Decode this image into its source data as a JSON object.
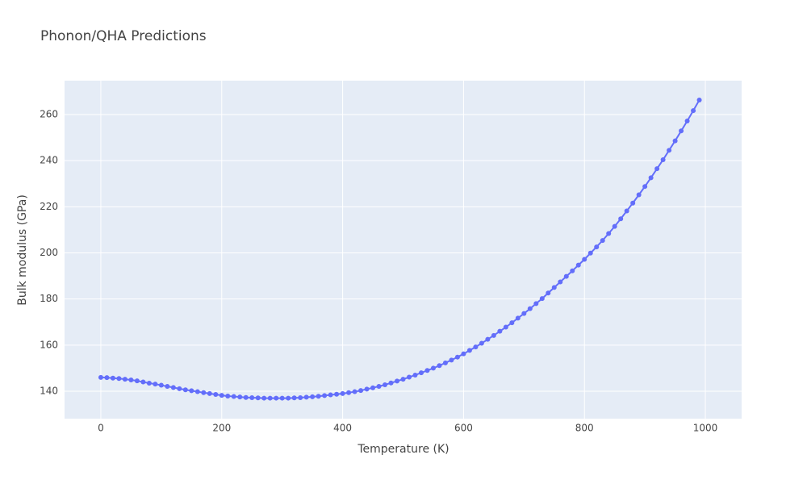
{
  "chart_data": {
    "type": "line",
    "title": "Phonon/QHA Predictions",
    "xlabel": "Temperature (K)",
    "ylabel": "Bulk modulus (GPa)",
    "x": [
      0,
      10,
      20,
      30,
      40,
      50,
      60,
      70,
      80,
      90,
      100,
      110,
      120,
      130,
      140,
      150,
      160,
      170,
      180,
      190,
      200,
      210,
      220,
      230,
      240,
      250,
      260,
      270,
      280,
      290,
      300,
      310,
      320,
      330,
      340,
      350,
      360,
      370,
      380,
      390,
      400,
      410,
      420,
      430,
      440,
      450,
      460,
      470,
      480,
      490,
      500,
      510,
      520,
      530,
      540,
      550,
      560,
      570,
      580,
      590,
      600,
      610,
      620,
      630,
      640,
      650,
      660,
      670,
      680,
      690,
      700,
      710,
      720,
      730,
      740,
      750,
      760,
      770,
      780,
      790,
      800,
      810,
      820,
      830,
      840,
      850,
      860,
      870,
      880,
      890,
      900,
      910,
      920,
      930,
      940,
      950,
      960,
      970,
      980,
      990
    ],
    "series": [
      {
        "name": "Bulk modulus",
        "color": "#636efa",
        "values": [
          146.0,
          145.9,
          145.7,
          145.5,
          145.2,
          144.9,
          144.5,
          144.0,
          143.5,
          143.1,
          142.6,
          142.1,
          141.6,
          141.1,
          140.6,
          140.2,
          139.8,
          139.4,
          139.0,
          138.6,
          138.2,
          137.9,
          137.7,
          137.5,
          137.3,
          137.2,
          137.1,
          137.0,
          137.0,
          137.0,
          137.0,
          137.0,
          137.1,
          137.2,
          137.4,
          137.6,
          137.8,
          138.1,
          138.4,
          138.7,
          139.0,
          139.4,
          139.8,
          140.3,
          140.9,
          141.5,
          142.1,
          142.8,
          143.6,
          144.4,
          145.2,
          146.1,
          147.0,
          148.0,
          149.0,
          150.0,
          151.1,
          152.3,
          153.5,
          154.8,
          156.2,
          157.7,
          159.2,
          160.8,
          162.5,
          164.2,
          166.0,
          167.8,
          169.7,
          171.7,
          173.7,
          175.8,
          178.0,
          180.2,
          182.6,
          185.0,
          187.4,
          189.8,
          192.2,
          194.7,
          197.2,
          199.9,
          202.6,
          205.4,
          208.4,
          211.5,
          214.8,
          218.2,
          221.6,
          225.2,
          228.8,
          232.6,
          236.5,
          240.4,
          244.5,
          248.6,
          252.9,
          257.2,
          261.7,
          266.3
        ]
      }
    ],
    "xlim": [
      -60,
      1060
    ],
    "xticks": [
      0,
      200,
      400,
      600,
      800,
      1000
    ],
    "ylim": [
      128.1,
      274.7
    ],
    "yticks": [
      140,
      160,
      180,
      200,
      220,
      240,
      260
    ],
    "grid": true
  }
}
